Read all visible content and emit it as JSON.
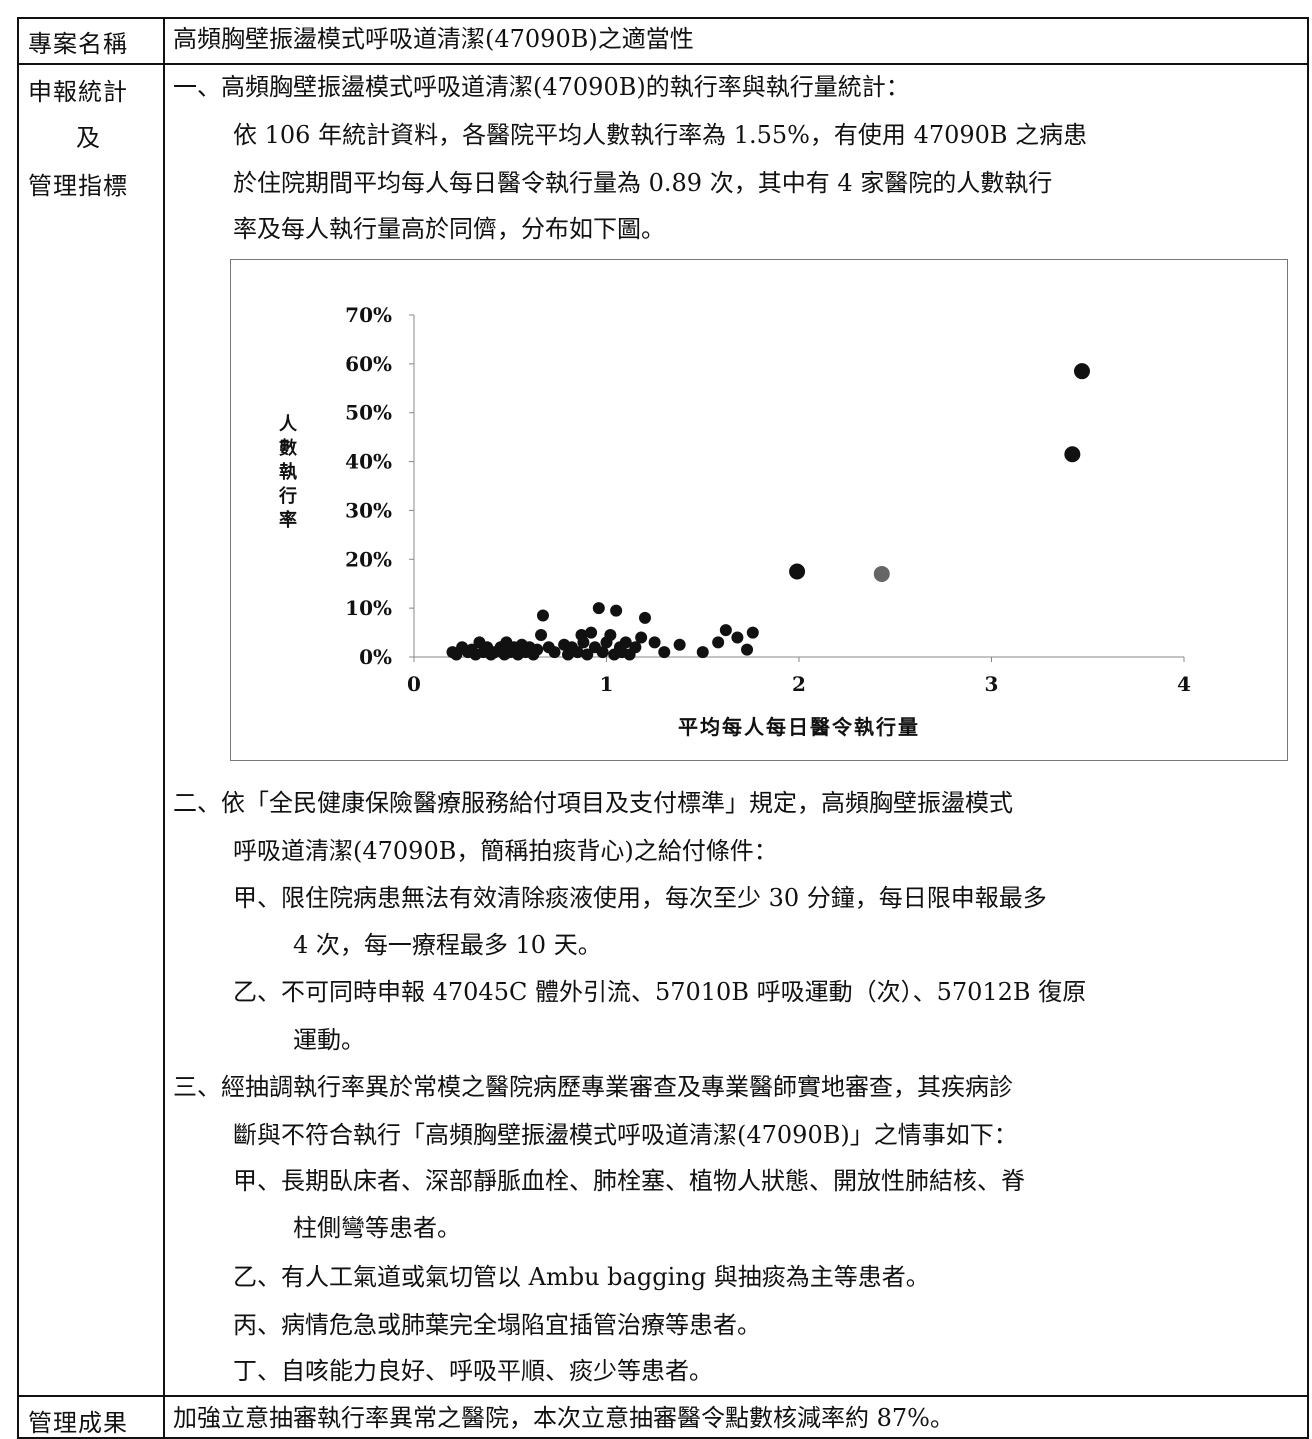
{
  "table": {
    "row1": {
      "label": "專案名稱",
      "value": "高頻胸壁振盪模式呼吸道清潔(47090B)之適當性"
    },
    "row2": {
      "label_lines": [
        "申報統計",
        "及",
        "管理指標"
      ],
      "s1_heading": "一、高頻胸壁振盪模式呼吸道清潔(47090B)的執行率與執行量統計：",
      "s1_lines": [
        "依 106 年統計資料，各醫院平均人數執行率為 1.55%，有使用 47090B 之病患",
        "於住院期間平均每人每日醫令執行量為 0.89 次，其中有 4 家醫院的人數執行",
        "率及每人執行量高於同儕，分布如下圖。"
      ],
      "s2_lines": [
        "二、依「全民健康保險醫療服務給付項目及支付標準」規定，高頻胸壁振盪模式",
        "呼吸道清潔(47090B，簡稱拍痰背心)之給付條件："
      ],
      "s2_a": [
        "甲、限住院病患無法有效清除痰液使用，每次至少 30 分鐘，每日限申報最多",
        "4 次，每一療程最多 10 天。"
      ],
      "s2_b": [
        "乙、不可同時申報 47045C 體外引流、57010B 呼吸運動（次）、57012B 復原",
        "運動。"
      ],
      "s3_lines": [
        "三、經抽調執行率異於常模之醫院病歷專業審查及專業醫師實地審查，其疾病診",
        "斷與不符合執行「高頻胸壁振盪模式呼吸道清潔(47090B)」之情事如下："
      ],
      "s3_a": [
        "甲、長期臥床者、深部靜脈血栓、肺栓塞、植物人狀態、開放性肺結核、脊",
        "柱側彎等患者。"
      ],
      "s3_b": "乙、有人工氣道或氣切管以 Ambu bagging 與抽痰為主等患者。",
      "s3_c": "丙、病情危急或肺葉完全塌陷宜插管治療等患者。",
      "s3_d": "丁、自咳能力良好、呼吸平順、痰少等患者。"
    },
    "row3": {
      "label": "管理成果",
      "value": "加強立意抽審執行率異常之醫院，本次立意抽審醫令點數核減率約 87%。"
    }
  },
  "chart_data": {
    "type": "scatter",
    "xlabel": "平均每人每日醫令執行量",
    "ylabel": "人數執行率",
    "xlim": [
      0,
      4
    ],
    "ylim": [
      0,
      0.7
    ],
    "x_ticks": [
      "0",
      "1",
      "2",
      "3",
      "4"
    ],
    "y_ticks": [
      "0%",
      "10%",
      "20%",
      "30%",
      "40%",
      "50%",
      "60%",
      "70%"
    ],
    "grid": false,
    "marker_color": "#111111",
    "highlight_color": "#666666",
    "points": [
      [
        0.2,
        0.01
      ],
      [
        0.22,
        0.005
      ],
      [
        0.25,
        0.02
      ],
      [
        0.28,
        0.01
      ],
      [
        0.3,
        0.015
      ],
      [
        0.32,
        0.005
      ],
      [
        0.34,
        0.03
      ],
      [
        0.36,
        0.01
      ],
      [
        0.38,
        0.02
      ],
      [
        0.4,
        0.005
      ],
      [
        0.42,
        0.01
      ],
      [
        0.45,
        0.02
      ],
      [
        0.47,
        0.005
      ],
      [
        0.48,
        0.03
      ],
      [
        0.5,
        0.01
      ],
      [
        0.52,
        0.02
      ],
      [
        0.54,
        0.005
      ],
      [
        0.56,
        0.025
      ],
      [
        0.58,
        0.01
      ],
      [
        0.6,
        0.02
      ],
      [
        0.62,
        0.005
      ],
      [
        0.64,
        0.015
      ],
      [
        0.66,
        0.045
      ],
      [
        0.67,
        0.085
      ],
      [
        0.7,
        0.02
      ],
      [
        0.73,
        0.01
      ],
      [
        0.78,
        0.025
      ],
      [
        0.8,
        0.005
      ],
      [
        0.82,
        0.02
      ],
      [
        0.85,
        0.01
      ],
      [
        0.87,
        0.045
      ],
      [
        0.88,
        0.03
      ],
      [
        0.9,
        0.005
      ],
      [
        0.92,
        0.05
      ],
      [
        0.94,
        0.02
      ],
      [
        0.96,
        0.1
      ],
      [
        0.98,
        0.01
      ],
      [
        1.0,
        0.03
      ],
      [
        1.02,
        0.045
      ],
      [
        1.04,
        0.005
      ],
      [
        1.05,
        0.095
      ],
      [
        1.07,
        0.02
      ],
      [
        1.08,
        0.01
      ],
      [
        1.1,
        0.03
      ],
      [
        1.12,
        0.005
      ],
      [
        1.15,
        0.02
      ],
      [
        1.18,
        0.04
      ],
      [
        1.2,
        0.08
      ],
      [
        1.25,
        0.03
      ],
      [
        1.3,
        0.01
      ],
      [
        1.38,
        0.025
      ],
      [
        1.5,
        0.01
      ],
      [
        1.58,
        0.03
      ],
      [
        1.62,
        0.055
      ],
      [
        1.68,
        0.04
      ],
      [
        1.73,
        0.015
      ],
      [
        1.76,
        0.05
      ],
      [
        1.99,
        0.175
      ],
      [
        3.42,
        0.415
      ],
      [
        3.47,
        0.585
      ]
    ],
    "highlight_points": [
      [
        2.43,
        0.17
      ]
    ]
  }
}
